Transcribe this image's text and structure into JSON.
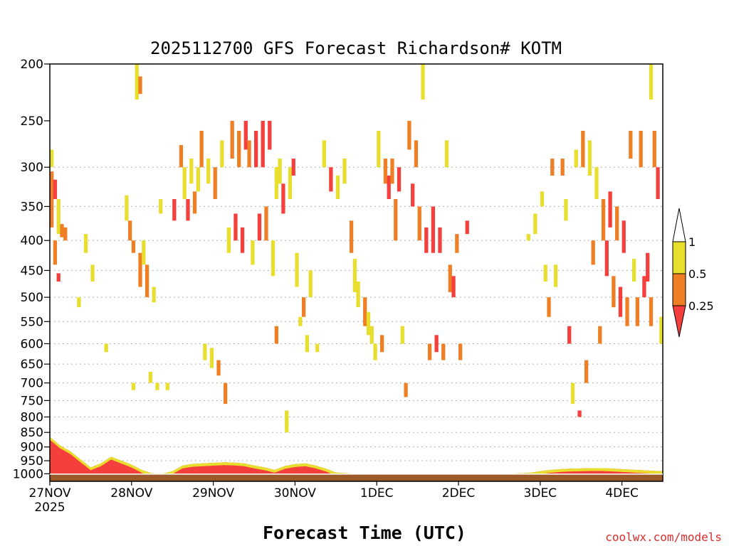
{
  "chart_data": {
    "type": "heatmap",
    "title": "2025112700 GFS Forecast Richardson# KOTM",
    "xlabel": "Forecast Time (UTC)",
    "ylabel": "",
    "credit": "coolwx.com/models",
    "x_axis": {
      "unit": "hours since 27NOV 2025 00Z",
      "range": [
        0,
        180
      ],
      "ticks": [
        {
          "label": "27NOV",
          "sublabel": "2025",
          "hour": 0
        },
        {
          "label": "28NOV",
          "hour": 24
        },
        {
          "label": "29NOV",
          "hour": 48
        },
        {
          "label": "30NOV",
          "hour": 72
        },
        {
          "label": "1DEC",
          "hour": 96
        },
        {
          "label": "2DEC",
          "hour": 120
        },
        {
          "label": "3DEC",
          "hour": 144
        },
        {
          "label": "4DEC",
          "hour": 168
        }
      ]
    },
    "y_axis": {
      "unit": "hPa",
      "scale": "log",
      "inverted": true,
      "range": [
        200,
        1030
      ],
      "ticks": [
        200,
        250,
        300,
        350,
        400,
        450,
        500,
        550,
        600,
        650,
        700,
        750,
        800,
        850,
        900,
        950,
        1000
      ],
      "grid_ticks": [
        300,
        350,
        400,
        450,
        500,
        550,
        600,
        650,
        700,
        750,
        800,
        850,
        900,
        950
      ],
      "grid": "dotted"
    },
    "colorbar": {
      "labels": [
        "1",
        "0.5",
        "0.25"
      ],
      "bins": [
        {
          "label": "> 1",
          "color": "#ffffff"
        },
        {
          "label": "0.5 - 1",
          "color": "#e8de2e"
        },
        {
          "label": "0.25 - 0.5",
          "color": "#ef7f25"
        },
        {
          "label": "< 0.25",
          "color": "#f53f3c"
        }
      ]
    },
    "ground": {
      "color": "#9c5a2a",
      "top_hpa": 1000
    },
    "colors": {
      "white": "#ffffff",
      "yellow": "#e8de2e",
      "orange": "#ef7f25",
      "red": "#f53f3c"
    },
    "boundary_layer": {
      "hours": [
        0,
        3,
        6,
        9,
        12,
        15,
        18,
        21,
        24,
        27,
        30,
        33,
        36,
        39,
        42,
        45,
        48,
        51,
        54,
        57,
        60,
        63,
        66,
        69,
        72,
        75,
        78,
        81,
        84,
        87,
        90,
        93,
        96,
        99,
        102,
        105,
        108,
        111,
        114,
        117,
        120,
        123,
        126,
        129,
        132,
        135,
        138,
        141,
        144,
        147,
        150,
        153,
        156,
        159,
        162,
        165,
        168,
        171,
        174,
        177,
        180
      ],
      "top_hpa": [
        865,
        895,
        915,
        945,
        975,
        960,
        935,
        950,
        965,
        985,
        998,
        1000,
        990,
        968,
        962,
        960,
        958,
        956,
        957,
        960,
        968,
        975,
        985,
        970,
        963,
        960,
        968,
        980,
        995,
        998,
        1000,
        1002,
        1004,
        1005,
        1005,
        1006,
        1005,
        1004,
        1003,
        1003,
        1002,
        1002,
        1002,
        1003,
        1003,
        1000,
        998,
        996,
        990,
        985,
        982,
        980,
        979,
        978,
        978,
        980,
        982,
        984,
        986,
        988,
        990
      ]
    },
    "cells": [
      {
        "h": 0,
        "p1": 280,
        "p2": 300,
        "c": "y"
      },
      {
        "h": 0,
        "p1": 305,
        "p2": 380,
        "c": "o"
      },
      {
        "h": 1,
        "p1": 315,
        "p2": 340,
        "c": "r"
      },
      {
        "h": 1,
        "p1": 400,
        "p2": 440,
        "c": "o"
      },
      {
        "h": 2,
        "p1": 340,
        "p2": 390,
        "c": "y"
      },
      {
        "h": 2,
        "p1": 455,
        "p2": 470,
        "c": "r"
      },
      {
        "h": 3,
        "p1": 375,
        "p2": 395,
        "c": "o"
      },
      {
        "h": 4,
        "p1": 380,
        "p2": 400,
        "c": "o"
      },
      {
        "h": 8,
        "p1": 500,
        "p2": 520,
        "c": "y"
      },
      {
        "h": 10,
        "p1": 390,
        "p2": 420,
        "c": "y"
      },
      {
        "h": 12,
        "p1": 440,
        "p2": 470,
        "c": "y"
      },
      {
        "h": 16,
        "p1": 600,
        "p2": 620,
        "c": "y"
      },
      {
        "h": 22,
        "p1": 335,
        "p2": 370,
        "c": "y"
      },
      {
        "h": 23,
        "p1": 370,
        "p2": 400,
        "c": "o"
      },
      {
        "h": 24,
        "p1": 400,
        "p2": 420,
        "c": "o"
      },
      {
        "h": 24,
        "p1": 700,
        "p2": 720,
        "c": "y"
      },
      {
        "h": 25,
        "p1": 200,
        "p2": 230,
        "c": "y"
      },
      {
        "h": 26,
        "p1": 210,
        "p2": 225,
        "c": "o"
      },
      {
        "h": 26,
        "p1": 420,
        "p2": 480,
        "c": "o"
      },
      {
        "h": 27,
        "p1": 400,
        "p2": 440,
        "c": "y"
      },
      {
        "h": 28,
        "p1": 440,
        "p2": 500,
        "c": "o"
      },
      {
        "h": 29,
        "p1": 670,
        "p2": 700,
        "c": "y"
      },
      {
        "h": 30,
        "p1": 480,
        "p2": 510,
        "c": "y"
      },
      {
        "h": 31,
        "p1": 700,
        "p2": 720,
        "c": "y"
      },
      {
        "h": 32,
        "p1": 340,
        "p2": 360,
        "c": "y"
      },
      {
        "h": 34,
        "p1": 700,
        "p2": 720,
        "c": "y"
      },
      {
        "h": 36,
        "p1": 340,
        "p2": 370,
        "c": "r"
      },
      {
        "h": 38,
        "p1": 275,
        "p2": 300,
        "c": "o"
      },
      {
        "h": 39,
        "p1": 300,
        "p2": 340,
        "c": "y"
      },
      {
        "h": 40,
        "p1": 340,
        "p2": 370,
        "c": "r"
      },
      {
        "h": 41,
        "p1": 290,
        "p2": 320,
        "c": "y"
      },
      {
        "h": 42,
        "p1": 330,
        "p2": 360,
        "c": "o"
      },
      {
        "h": 43,
        "p1": 300,
        "p2": 330,
        "c": "y"
      },
      {
        "h": 44,
        "p1": 260,
        "p2": 300,
        "c": "o"
      },
      {
        "h": 45,
        "p1": 600,
        "p2": 640,
        "c": "y"
      },
      {
        "h": 46,
        "p1": 290,
        "p2": 320,
        "c": "y"
      },
      {
        "h": 47,
        "p1": 610,
        "p2": 660,
        "c": "y"
      },
      {
        "h": 48,
        "p1": 300,
        "p2": 340,
        "c": "o"
      },
      {
        "h": 49,
        "p1": 640,
        "p2": 680,
        "c": "o"
      },
      {
        "h": 50,
        "p1": 270,
        "p2": 300,
        "c": "y"
      },
      {
        "h": 51,
        "p1": 700,
        "p2": 760,
        "c": "o"
      },
      {
        "h": 52,
        "p1": 380,
        "p2": 420,
        "c": "y"
      },
      {
        "h": 53,
        "p1": 250,
        "p2": 290,
        "c": "o"
      },
      {
        "h": 54,
        "p1": 360,
        "p2": 400,
        "c": "r"
      },
      {
        "h": 55,
        "p1": 260,
        "p2": 300,
        "c": "o"
      },
      {
        "h": 56,
        "p1": 380,
        "p2": 420,
        "c": "r"
      },
      {
        "h": 57,
        "p1": 250,
        "p2": 280,
        "c": "r"
      },
      {
        "h": 58,
        "p1": 270,
        "p2": 300,
        "c": "o"
      },
      {
        "h": 59,
        "p1": 400,
        "p2": 440,
        "c": "y"
      },
      {
        "h": 60,
        "p1": 260,
        "p2": 300,
        "c": "r"
      },
      {
        "h": 61,
        "p1": 360,
        "p2": 400,
        "c": "r"
      },
      {
        "h": 62,
        "p1": 250,
        "p2": 300,
        "c": "r"
      },
      {
        "h": 63,
        "p1": 350,
        "p2": 400,
        "c": "o"
      },
      {
        "h": 64,
        "p1": 250,
        "p2": 280,
        "c": "r"
      },
      {
        "h": 65,
        "p1": 400,
        "p2": 460,
        "c": "y"
      },
      {
        "h": 66,
        "p1": 300,
        "p2": 340,
        "c": "y"
      },
      {
        "h": 66,
        "p1": 560,
        "p2": 600,
        "c": "o"
      },
      {
        "h": 67,
        "p1": 290,
        "p2": 320,
        "c": "y"
      },
      {
        "h": 68,
        "p1": 320,
        "p2": 360,
        "c": "r"
      },
      {
        "h": 69,
        "p1": 780,
        "p2": 850,
        "c": "y"
      },
      {
        "h": 70,
        "p1": 300,
        "p2": 340,
        "c": "y"
      },
      {
        "h": 71,
        "p1": 290,
        "p2": 310,
        "c": "r"
      },
      {
        "h": 72,
        "p1": 420,
        "p2": 480,
        "c": "y"
      },
      {
        "h": 73,
        "p1": 540,
        "p2": 560,
        "c": "y"
      },
      {
        "h": 74,
        "p1": 500,
        "p2": 540,
        "c": "o"
      },
      {
        "h": 75,
        "p1": 580,
        "p2": 620,
        "c": "y"
      },
      {
        "h": 76,
        "p1": 450,
        "p2": 500,
        "c": "y"
      },
      {
        "h": 78,
        "p1": 600,
        "p2": 620,
        "c": "y"
      },
      {
        "h": 80,
        "p1": 270,
        "p2": 300,
        "c": "y"
      },
      {
        "h": 82,
        "p1": 300,
        "p2": 330,
        "c": "r"
      },
      {
        "h": 84,
        "p1": 310,
        "p2": 340,
        "c": "y"
      },
      {
        "h": 86,
        "p1": 290,
        "p2": 320,
        "c": "y"
      },
      {
        "h": 88,
        "p1": 370,
        "p2": 420,
        "c": "o"
      },
      {
        "h": 89,
        "p1": 430,
        "p2": 490,
        "c": "y"
      },
      {
        "h": 90,
        "p1": 470,
        "p2": 520,
        "c": "y"
      },
      {
        "h": 92,
        "p1": 500,
        "p2": 560,
        "c": "o"
      },
      {
        "h": 93,
        "p1": 530,
        "p2": 580,
        "c": "y"
      },
      {
        "h": 94,
        "p1": 560,
        "p2": 600,
        "c": "y"
      },
      {
        "h": 95,
        "p1": 600,
        "p2": 640,
        "c": "y"
      },
      {
        "h": 96,
        "p1": 260,
        "p2": 300,
        "c": "y"
      },
      {
        "h": 97,
        "p1": 580,
        "p2": 620,
        "c": "o"
      },
      {
        "h": 98,
        "p1": 290,
        "p2": 320,
        "c": "o"
      },
      {
        "h": 99,
        "p1": 310,
        "p2": 340,
        "c": "r"
      },
      {
        "h": 100,
        "p1": 290,
        "p2": 320,
        "c": "o"
      },
      {
        "h": 101,
        "p1": 340,
        "p2": 400,
        "c": "o"
      },
      {
        "h": 102,
        "p1": 300,
        "p2": 330,
        "c": "r"
      },
      {
        "h": 103,
        "p1": 560,
        "p2": 600,
        "c": "y"
      },
      {
        "h": 104,
        "p1": 700,
        "p2": 740,
        "c": "o"
      },
      {
        "h": 105,
        "p1": 250,
        "p2": 280,
        "c": "o"
      },
      {
        "h": 106,
        "p1": 320,
        "p2": 350,
        "c": "r"
      },
      {
        "h": 107,
        "p1": 270,
        "p2": 300,
        "c": "o"
      },
      {
        "h": 108,
        "p1": 350,
        "p2": 400,
        "c": "o"
      },
      {
        "h": 109,
        "p1": 200,
        "p2": 230,
        "c": "y"
      },
      {
        "h": 110,
        "p1": 380,
        "p2": 420,
        "c": "r"
      },
      {
        "h": 111,
        "p1": 600,
        "p2": 640,
        "c": "o"
      },
      {
        "h": 112,
        "p1": 350,
        "p2": 420,
        "c": "r"
      },
      {
        "h": 113,
        "p1": 580,
        "p2": 620,
        "c": "r"
      },
      {
        "h": 114,
        "p1": 380,
        "p2": 420,
        "c": "r"
      },
      {
        "h": 115,
        "p1": 600,
        "p2": 640,
        "c": "o"
      },
      {
        "h": 116,
        "p1": 270,
        "p2": 300,
        "c": "y"
      },
      {
        "h": 117,
        "p1": 440,
        "p2": 490,
        "c": "o"
      },
      {
        "h": 118,
        "p1": 460,
        "p2": 500,
        "c": "r"
      },
      {
        "h": 119,
        "p1": 390,
        "p2": 420,
        "c": "o"
      },
      {
        "h": 120,
        "p1": 600,
        "p2": 640,
        "c": "o"
      },
      {
        "h": 122,
        "p1": 370,
        "p2": 390,
        "c": "r"
      },
      {
        "h": 140,
        "p1": 390,
        "p2": 400,
        "c": "y"
      },
      {
        "h": 142,
        "p1": 360,
        "p2": 390,
        "c": "y"
      },
      {
        "h": 144,
        "p1": 330,
        "p2": 350,
        "c": "y"
      },
      {
        "h": 145,
        "p1": 440,
        "p2": 470,
        "c": "y"
      },
      {
        "h": 146,
        "p1": 500,
        "p2": 540,
        "c": "o"
      },
      {
        "h": 147,
        "p1": 290,
        "p2": 310,
        "c": "o"
      },
      {
        "h": 148,
        "p1": 440,
        "p2": 480,
        "c": "y"
      },
      {
        "h": 150,
        "p1": 290,
        "p2": 310,
        "c": "o"
      },
      {
        "h": 151,
        "p1": 340,
        "p2": 370,
        "c": "y"
      },
      {
        "h": 152,
        "p1": 560,
        "p2": 600,
        "c": "r"
      },
      {
        "h": 153,
        "p1": 700,
        "p2": 760,
        "c": "y"
      },
      {
        "h": 154,
        "p1": 280,
        "p2": 300,
        "c": "y"
      },
      {
        "h": 155,
        "p1": 780,
        "p2": 800,
        "c": "r"
      },
      {
        "h": 156,
        "p1": 260,
        "p2": 300,
        "c": "o"
      },
      {
        "h": 157,
        "p1": 640,
        "p2": 700,
        "c": "o"
      },
      {
        "h": 158,
        "p1": 270,
        "p2": 310,
        "c": "y"
      },
      {
        "h": 159,
        "p1": 400,
        "p2": 440,
        "c": "o"
      },
      {
        "h": 160,
        "p1": 300,
        "p2": 340,
        "c": "y"
      },
      {
        "h": 161,
        "p1": 560,
        "p2": 600,
        "c": "o"
      },
      {
        "h": 162,
        "p1": 340,
        "p2": 400,
        "c": "o"
      },
      {
        "h": 163,
        "p1": 400,
        "p2": 460,
        "c": "r"
      },
      {
        "h": 164,
        "p1": 330,
        "p2": 380,
        "c": "r"
      },
      {
        "h": 165,
        "p1": 460,
        "p2": 520,
        "c": "o"
      },
      {
        "h": 166,
        "p1": 350,
        "p2": 400,
        "c": "o"
      },
      {
        "h": 167,
        "p1": 480,
        "p2": 540,
        "c": "r"
      },
      {
        "h": 168,
        "p1": 370,
        "p2": 420,
        "c": "r"
      },
      {
        "h": 169,
        "p1": 500,
        "p2": 560,
        "c": "o"
      },
      {
        "h": 170,
        "p1": 260,
        "p2": 290,
        "c": "o"
      },
      {
        "h": 171,
        "p1": 430,
        "p2": 470,
        "c": "y"
      },
      {
        "h": 172,
        "p1": 500,
        "p2": 560,
        "c": "o"
      },
      {
        "h": 173,
        "p1": 260,
        "p2": 300,
        "c": "o"
      },
      {
        "h": 174,
        "p1": 460,
        "p2": 500,
        "c": "r"
      },
      {
        "h": 175,
        "p1": 420,
        "p2": 470,
        "c": "r"
      },
      {
        "h": 176,
        "p1": 200,
        "p2": 230,
        "c": "y"
      },
      {
        "h": 176,
        "p1": 500,
        "p2": 560,
        "c": "o"
      },
      {
        "h": 177,
        "p1": 260,
        "p2": 300,
        "c": "o"
      },
      {
        "h": 178,
        "p1": 300,
        "p2": 340,
        "c": "r"
      },
      {
        "h": 179,
        "p1": 540,
        "p2": 600,
        "c": "y"
      }
    ],
    "legend": "right"
  }
}
